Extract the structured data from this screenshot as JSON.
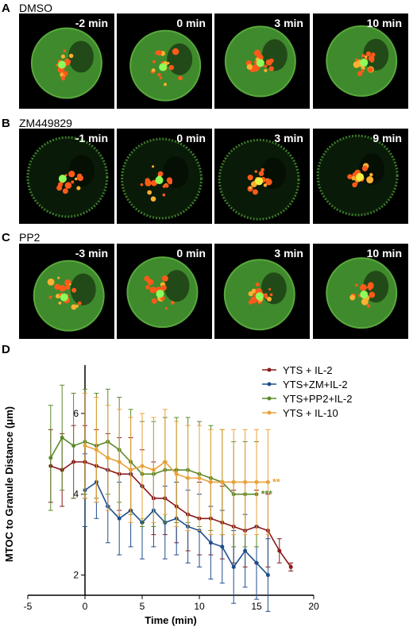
{
  "panels": [
    {
      "letter": "A",
      "title": "DMSO",
      "times": [
        "-2 min",
        "0 min",
        "3 min",
        "10 min"
      ]
    },
    {
      "letter": "B",
      "title": "ZM449829",
      "times": [
        "-1 min",
        "0 min",
        "3 min",
        "9 min"
      ]
    },
    {
      "letter": "C",
      "title": "PP2",
      "times": [
        "-3 min",
        "0 min",
        "3 min",
        "10 min"
      ]
    }
  ],
  "chart": {
    "letter": "D"
  },
  "chart_data": {
    "type": "line",
    "title": "",
    "xlabel": "Time (min)",
    "ylabel": "MTOC to Granule Distance (μm)",
    "xlim": [
      -5,
      20
    ],
    "ylim": [
      1.5,
      7
    ],
    "x_ticks": [
      -5,
      0,
      5,
      10,
      15,
      20
    ],
    "y_ticks": [
      2,
      4,
      6
    ],
    "grid": false,
    "legend_position": "top-right",
    "series": [
      {
        "name": "YTS + IL-2",
        "color": "#8b1a1a",
        "x": [
          -3,
          -2,
          -1,
          0,
          1,
          2,
          3,
          4,
          5,
          6,
          7,
          8,
          9,
          10,
          11,
          12,
          13,
          14,
          15,
          16,
          17,
          18
        ],
        "y": [
          4.7,
          4.6,
          4.8,
          4.8,
          4.7,
          4.6,
          4.5,
          4.5,
          4.2,
          3.9,
          3.9,
          3.7,
          3.5,
          3.4,
          3.4,
          3.3,
          3.2,
          3.1,
          3.2,
          3.1,
          2.6,
          2.2
        ],
        "err": [
          0.9,
          0.9,
          0.9,
          0.9,
          0.9,
          0.9,
          0.9,
          0.9,
          0.9,
          0.9,
          0.9,
          0.9,
          0.9,
          0.9,
          0.9,
          0.9,
          0.9,
          0.9,
          0.9,
          0.9,
          0.3,
          0.1
        ]
      },
      {
        "name": "YTS+ZM+IL-2",
        "color": "#1f4e8c",
        "x": [
          0,
          1,
          2,
          3,
          4,
          5,
          6,
          7,
          8,
          9,
          10,
          11,
          12,
          13,
          14,
          15,
          16
        ],
        "y": [
          4.1,
          4.3,
          3.7,
          3.4,
          3.6,
          3.3,
          3.6,
          3.3,
          3.4,
          3.2,
          3.1,
          2.8,
          2.7,
          2.2,
          2.6,
          2.3,
          2.0
        ],
        "err": [
          0.9,
          0.9,
          0.9,
          0.9,
          0.9,
          0.9,
          0.9,
          0.9,
          0.9,
          0.9,
          0.9,
          0.9,
          0.9,
          0.9,
          0.9,
          0.9,
          0.9
        ]
      },
      {
        "name": "YTS+PP2+IL-2",
        "color": "#5b8a2a",
        "x": [
          -3,
          -2,
          -1,
          0,
          1,
          2,
          3,
          4,
          5,
          6,
          7,
          8,
          9,
          10,
          11,
          12,
          13,
          14,
          15
        ],
        "y": [
          4.9,
          5.4,
          5.2,
          5.3,
          5.2,
          5.3,
          5.1,
          4.8,
          4.5,
          4.5,
          4.6,
          4.6,
          4.6,
          4.5,
          4.4,
          4.3,
          4.0,
          4.0,
          4.0
        ],
        "err": [
          1.3,
          1.3,
          1.3,
          1.3,
          1.3,
          1.3,
          1.3,
          1.3,
          1.3,
          1.3,
          1.3,
          1.3,
          1.3,
          1.3,
          1.3,
          1.3,
          1.3,
          1.3,
          1.3
        ]
      },
      {
        "name": "YTS + IL-10",
        "color": "#e8a23a",
        "x": [
          0,
          1,
          2,
          3,
          4,
          5,
          6,
          7,
          8,
          9,
          10,
          11,
          12,
          13,
          14,
          15,
          16
        ],
        "y": [
          5.2,
          5.1,
          4.9,
          4.8,
          4.6,
          4.7,
          4.6,
          4.8,
          4.5,
          4.4,
          4.4,
          4.3,
          4.3,
          4.3,
          4.3,
          4.3,
          4.3
        ],
        "err": [
          1.3,
          1.3,
          1.3,
          1.3,
          1.3,
          1.3,
          1.3,
          1.3,
          1.3,
          1.3,
          1.3,
          1.3,
          1.3,
          1.3,
          1.3,
          1.3,
          1.3
        ]
      }
    ],
    "annotations": [
      {
        "text": "**",
        "x": 16.4,
        "y": 4.3,
        "color": "#e8a23a"
      },
      {
        "text": "***",
        "x": 15.4,
        "y": 4.0,
        "color": "#5b8a2a"
      }
    ]
  }
}
